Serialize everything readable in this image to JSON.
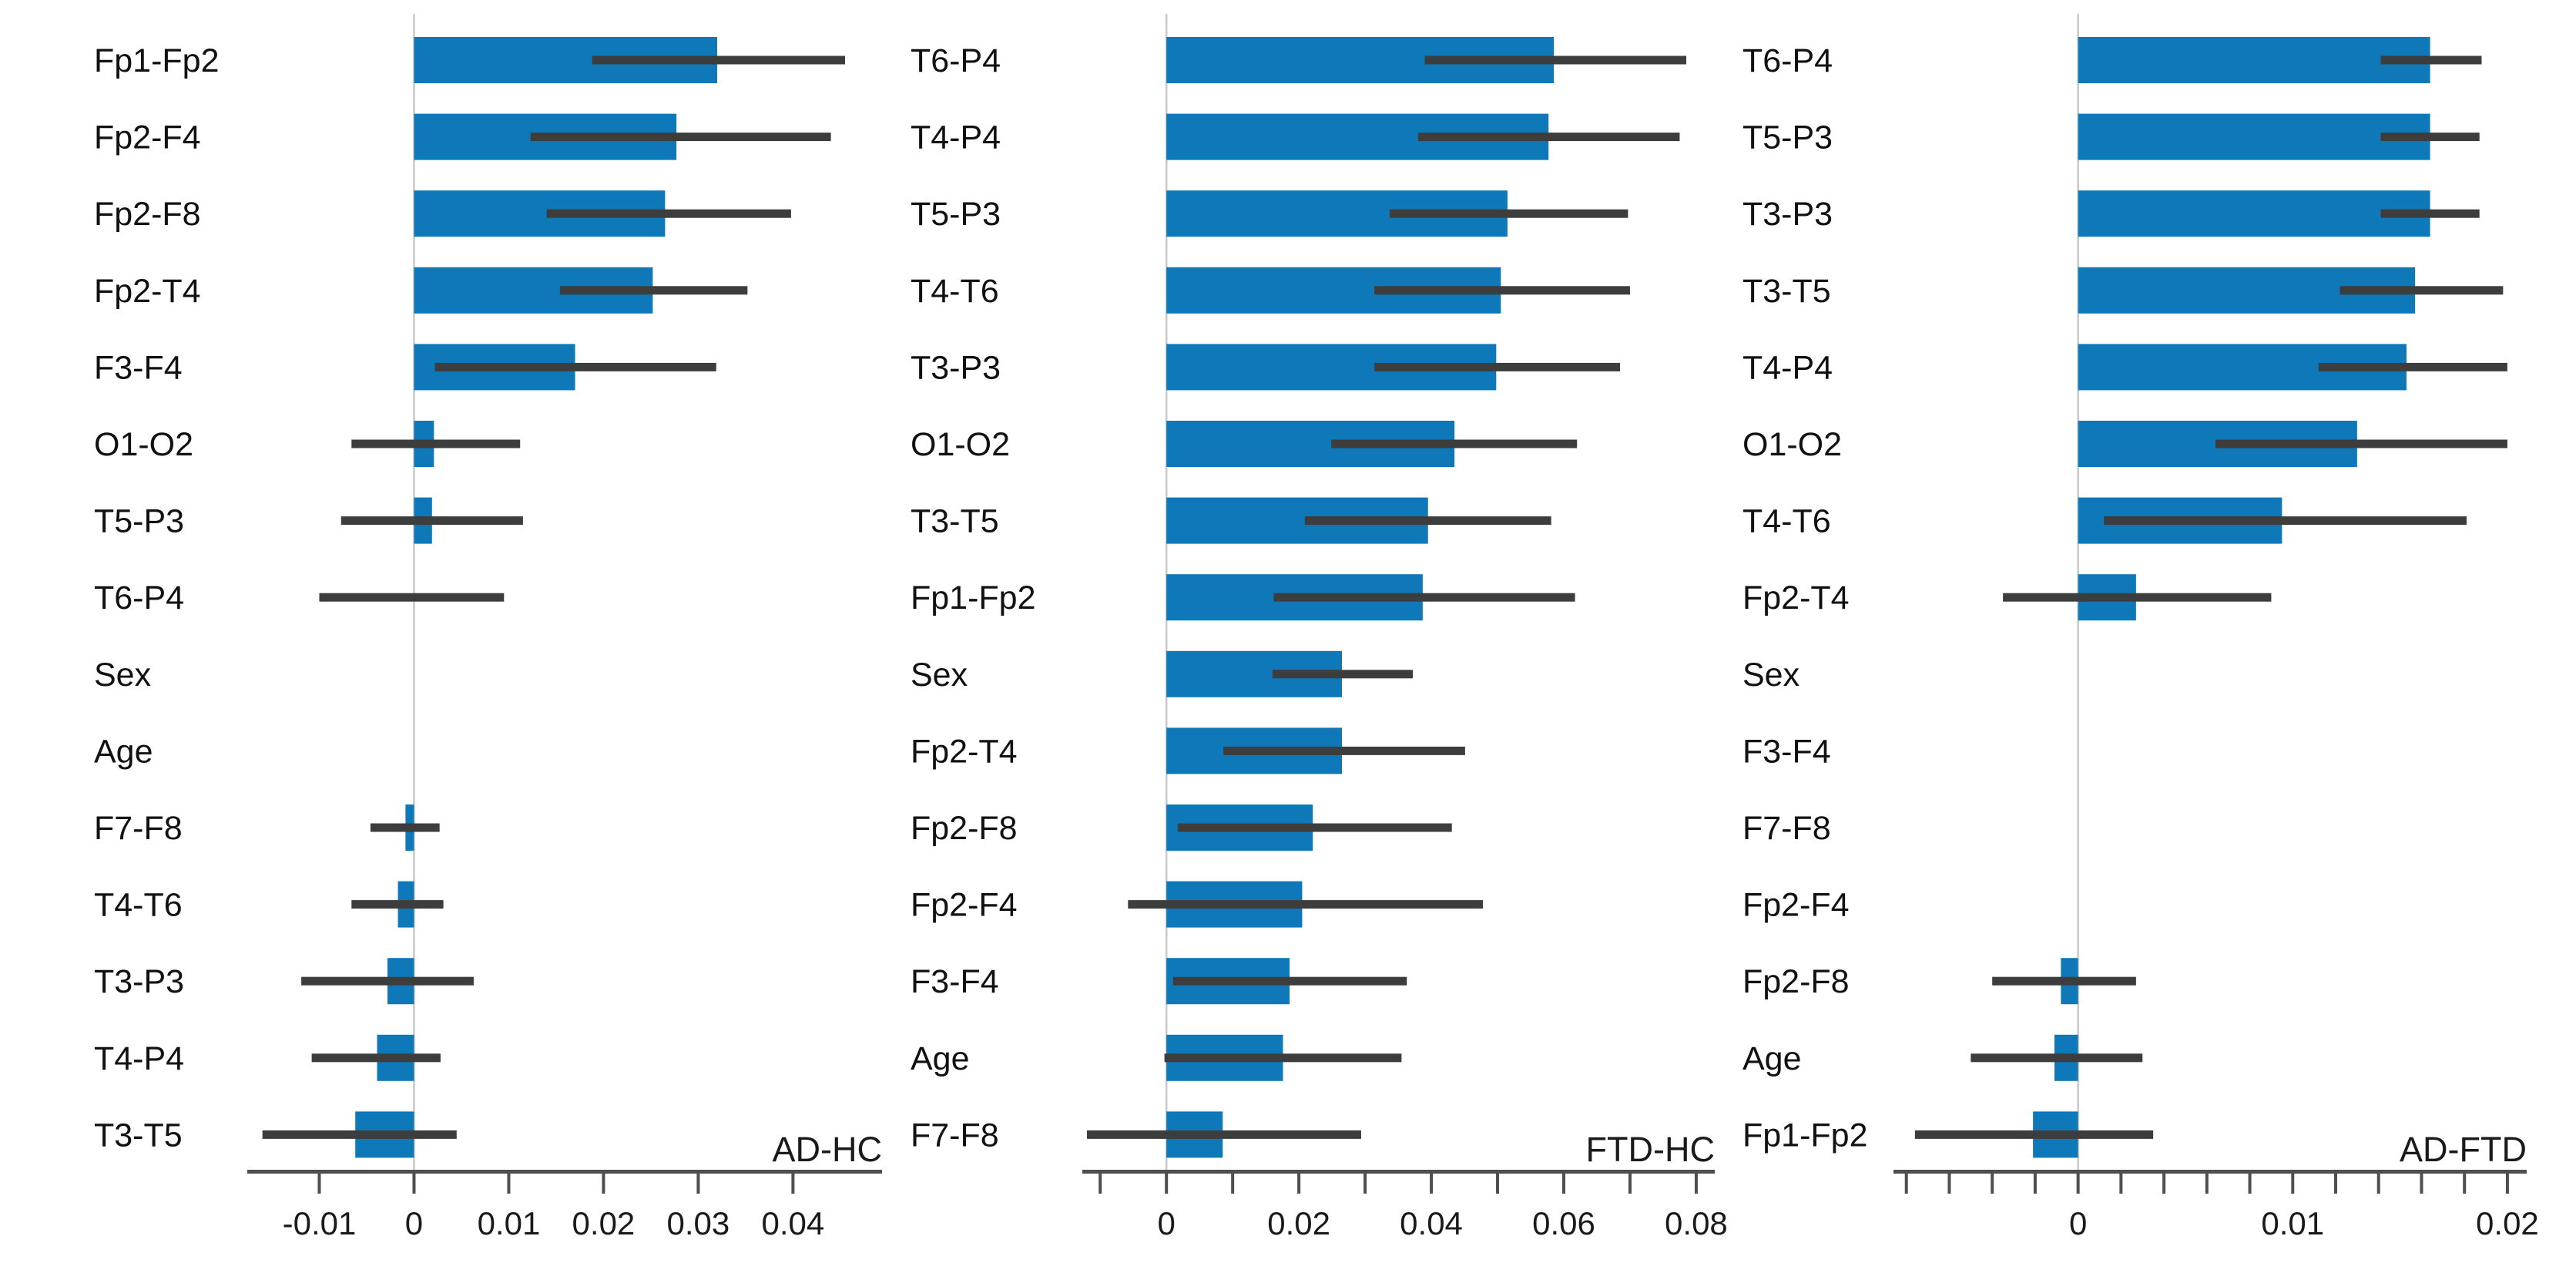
{
  "figure": {
    "background": "#ffffff",
    "bar_color": "#0f78b8",
    "error_bar_color": "#3d3d3d",
    "axis_color": "#4f4f4f",
    "zero_line_color": "#c8c8c8",
    "text_color": "#111111"
  },
  "chart_data": [
    {
      "type": "bar",
      "orientation": "horizontal",
      "title": "AD-HC",
      "xlabel": "",
      "ylabel": "",
      "grid": false,
      "legend": "none",
      "xlim": [
        -0.0176,
        0.0494
      ],
      "xticks": [
        -0.01,
        0,
        0.01,
        0.02,
        0.03,
        0.04
      ],
      "xtick_labels": [
        "-0.01",
        "0",
        "0.01",
        "0.02",
        "0.03",
        "0.04"
      ],
      "minor_xticks": [],
      "categories": [
        "Fp1-Fp2",
        "Fp2-F4",
        "Fp2-F8",
        "Fp2-T4",
        "F3-F4",
        "O1-O2",
        "T5-P3",
        "T6-P4",
        "Sex",
        "Age",
        "F7-F8",
        "T4-T6",
        "T3-P3",
        "T4-P4",
        "T3-T5"
      ],
      "values": [
        0.032,
        0.0277,
        0.0265,
        0.0252,
        0.017,
        0.0021,
        0.0019,
        0,
        0,
        0,
        -0.0009,
        -0.0017,
        -0.0028,
        -0.0039,
        -0.0062
      ],
      "ci_low": [
        0.0188,
        0.0123,
        0.014,
        0.0154,
        0.0022,
        -0.0066,
        -0.0077,
        -0.01,
        null,
        null,
        -0.0046,
        -0.0066,
        -0.0119,
        -0.0108,
        -0.016
      ],
      "ci_high": [
        0.0455,
        0.044,
        0.0398,
        0.0352,
        0.0319,
        0.0112,
        0.0115,
        0.0095,
        null,
        null,
        0.0027,
        0.0031,
        0.0063,
        0.0028,
        0.0045
      ]
    },
    {
      "type": "bar",
      "orientation": "horizontal",
      "title": "FTD-HC",
      "xlabel": "",
      "ylabel": "",
      "grid": false,
      "legend": "none",
      "xlim": [
        -0.0127,
        0.0828
      ],
      "xticks": [
        0,
        0.02,
        0.04,
        0.06,
        0.08
      ],
      "xtick_labels": [
        "0",
        "0.02",
        "0.04",
        "0.06",
        "0.08"
      ],
      "minor_xticks": [
        -0.01,
        0.01,
        0.03,
        0.05,
        0.07
      ],
      "categories": [
        "T6-P4",
        "T4-P4",
        "T5-P3",
        "T4-T6",
        "T3-P3",
        "O1-O2",
        "T3-T5",
        "Fp1-Fp2",
        "Sex",
        "Fp2-T4",
        "Fp2-F8",
        "Fp2-F4",
        "F3-F4",
        "Age",
        "F7-F8"
      ],
      "values": [
        0.0585,
        0.0577,
        0.0515,
        0.0505,
        0.0498,
        0.0435,
        0.0395,
        0.0387,
        0.0265,
        0.0265,
        0.0221,
        0.0205,
        0.0186,
        0.0176,
        0.0085
      ],
      "ci_low": [
        0.039,
        0.038,
        0.0337,
        0.0314,
        0.0314,
        0.0249,
        0.0209,
        0.0162,
        0.016,
        0.0086,
        0.0017,
        -0.0058,
        0.001,
        -0.0003,
        -0.012
      ],
      "ci_high": [
        0.0785,
        0.0775,
        0.0697,
        0.07,
        0.0685,
        0.062,
        0.0581,
        0.0617,
        0.0372,
        0.0451,
        0.0431,
        0.0478,
        0.0363,
        0.0355,
        0.0294
      ]
    },
    {
      "type": "bar",
      "orientation": "horizontal",
      "title": "AD-FTD",
      "xlabel": "",
      "ylabel": "",
      "grid": false,
      "legend": "none",
      "xlim": [
        -0.0086,
        0.0209
      ],
      "xticks": [
        0,
        0.01,
        0.02
      ],
      "xtick_labels": [
        "0",
        "0.01",
        "0.02"
      ],
      "minor_xticks": [
        -0.008,
        -0.006,
        -0.004,
        -0.002,
        0.002,
        0.004,
        0.006,
        0.008,
        0.012,
        0.014,
        0.016,
        0.018
      ],
      "categories": [
        "T6-P4",
        "T5-P3",
        "T3-P3",
        "T3-T5",
        "T4-P4",
        "O1-O2",
        "T4-T6",
        "Fp2-T4",
        "Sex",
        "F3-F4",
        "F7-F8",
        "Fp2-F4",
        "Fp2-F8",
        "Age",
        "Fp1-Fp2"
      ],
      "values": [
        0.0164,
        0.0164,
        0.0164,
        0.0157,
        0.0153,
        0.013,
        0.0095,
        0.0027,
        0,
        0,
        0,
        0,
        -0.0008,
        -0.0011,
        -0.0021
      ],
      "ci_low": [
        0.0141,
        0.0141,
        0.0141,
        0.0122,
        0.0112,
        0.0064,
        0.0012,
        -0.0035,
        null,
        null,
        null,
        null,
        -0.004,
        -0.005,
        -0.0076
      ],
      "ci_high": [
        0.0188,
        0.0187,
        0.0187,
        0.0198,
        0.02,
        0.02,
        0.0181,
        0.009,
        null,
        null,
        null,
        null,
        0.0027,
        0.003,
        0.0035
      ]
    }
  ]
}
